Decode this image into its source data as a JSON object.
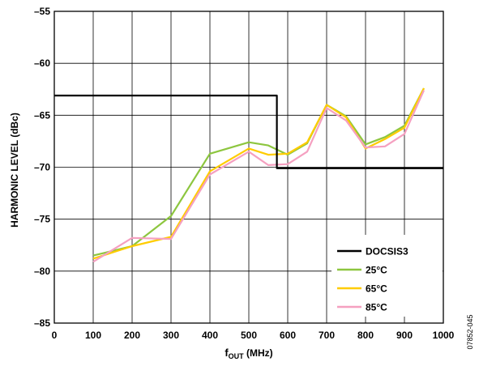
{
  "chart_data": {
    "type": "line",
    "title": "",
    "xlabel_main": "f",
    "xlabel_sub": "OUT",
    "xlabel_unit": " (MHz)",
    "ylabel": "HARMONIC LEVEL (dBc)",
    "xlim": [
      0,
      1000
    ],
    "ylim": [
      -85,
      -55
    ],
    "x_ticks": [
      0,
      100,
      200,
      300,
      400,
      500,
      600,
      700,
      800,
      900,
      1000
    ],
    "x_tick_labels": [
      "0",
      "100",
      "200",
      "300",
      "400",
      "500",
      "600",
      "700",
      "800",
      "900",
      "1000"
    ],
    "y_ticks": [
      -55,
      -60,
      -65,
      -70,
      -75,
      -80,
      -85
    ],
    "y_tick_labels": [
      "–55",
      "–60",
      "–65",
      "–70",
      "–75",
      "–80",
      "–85"
    ],
    "grid": true,
    "legend_placement": "bottom-right",
    "figure_id": "07852-045",
    "series": [
      {
        "name": "DOCSIS3",
        "color": "#000000",
        "step": true,
        "x": [
          0,
          572,
          572,
          1000
        ],
        "y": [
          -63.1,
          -63.1,
          -70.1,
          -70.1
        ]
      },
      {
        "name": "25°C",
        "color": "#8dc63f",
        "x": [
          100,
          200,
          300,
          400,
          500,
          550,
          600,
          650,
          700,
          750,
          800,
          850,
          900,
          950
        ],
        "y": [
          -78.5,
          -77.6,
          -74.7,
          -68.7,
          -67.6,
          -67.9,
          -68.8,
          -67.7,
          -64.0,
          -65.1,
          -67.8,
          -67.1,
          -66.0,
          -62.4
        ]
      },
      {
        "name": "65°C",
        "color": "#ffcc00",
        "x": [
          100,
          200,
          300,
          400,
          500,
          550,
          600,
          650,
          700,
          750,
          800,
          850,
          900,
          950
        ],
        "y": [
          -78.8,
          -77.6,
          -76.7,
          -70.4,
          -68.2,
          -68.8,
          -68.7,
          -67.6,
          -64.0,
          -65.2,
          -68.2,
          -67.3,
          -66.2,
          -62.4
        ]
      },
      {
        "name": "85°C",
        "color": "#f5a0c0",
        "x": [
          100,
          200,
          300,
          400,
          500,
          550,
          600,
          650,
          700,
          750,
          800,
          850,
          900,
          950
        ],
        "y": [
          -79.1,
          -76.8,
          -76.9,
          -70.7,
          -68.5,
          -69.8,
          -69.7,
          -68.5,
          -64.3,
          -65.5,
          -68.1,
          -68.0,
          -66.8,
          -62.6
        ]
      }
    ]
  }
}
